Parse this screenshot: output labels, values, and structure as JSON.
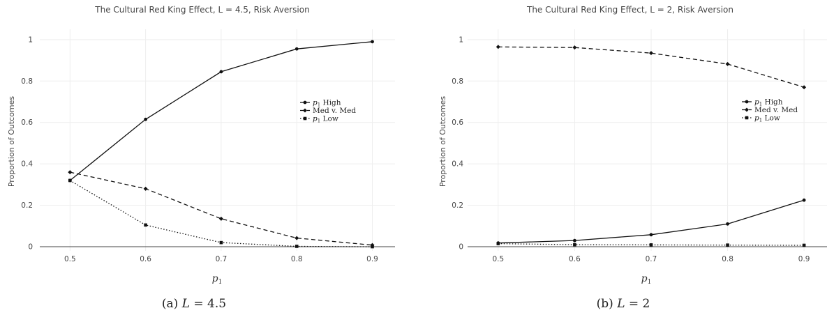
{
  "chart_data": [
    {
      "type": "line",
      "title": "The Cultural Red King Effect, L = 4.5, Risk Aversion",
      "xlabel": "p1",
      "ylabel": "Proportion of Outcomes",
      "caption": "(a) L = 4.5",
      "x": [
        0.5,
        0.6,
        0.7,
        0.8,
        0.9
      ],
      "x_ticks": [
        "0.5",
        "0.6",
        "0.7",
        "0.8",
        "0.9"
      ],
      "y_ticks": [
        "0",
        "0.2",
        "0.4",
        "0.6",
        "0.8",
        "1"
      ],
      "ylim": [
        -0.02,
        1.05
      ],
      "grid": true,
      "legend_position": "right",
      "series": [
        {
          "name": "p1 High",
          "values": [
            0.32,
            0.615,
            0.845,
            0.955,
            0.99
          ],
          "dash": "solid",
          "marker": "circle"
        },
        {
          "name": "Med v. Med",
          "values": [
            0.36,
            0.28,
            0.135,
            0.042,
            0.008
          ],
          "dash": "dashed",
          "marker": "diamond"
        },
        {
          "name": "p1 Low",
          "values": [
            0.32,
            0.105,
            0.02,
            0.002,
            0.0
          ],
          "dash": "dotted",
          "marker": "square"
        }
      ]
    },
    {
      "type": "line",
      "title": "The Cultural Red King Effect, L = 2, Risk Aversion",
      "xlabel": "p1",
      "ylabel": "Proportion of Outcomes",
      "caption": "(b) L = 2",
      "x": [
        0.5,
        0.6,
        0.7,
        0.8,
        0.9
      ],
      "x_ticks": [
        "0.5",
        "0.6",
        "0.7",
        "0.8",
        "0.9"
      ],
      "y_ticks": [
        "0",
        "0.2",
        "0.4",
        "0.6",
        "0.8",
        "1"
      ],
      "ylim": [
        -0.02,
        1.05
      ],
      "grid": true,
      "legend_position": "right",
      "series": [
        {
          "name": "p1 High",
          "values": [
            0.018,
            0.03,
            0.058,
            0.11,
            0.225
          ],
          "dash": "solid",
          "marker": "circle"
        },
        {
          "name": "Med v. Med",
          "values": [
            0.965,
            0.962,
            0.935,
            0.882,
            0.77
          ],
          "dash": "dashed",
          "marker": "diamond"
        },
        {
          "name": "p1 Low",
          "values": [
            0.015,
            0.01,
            0.009,
            0.008,
            0.007
          ],
          "dash": "dotted",
          "marker": "square"
        }
      ]
    }
  ]
}
